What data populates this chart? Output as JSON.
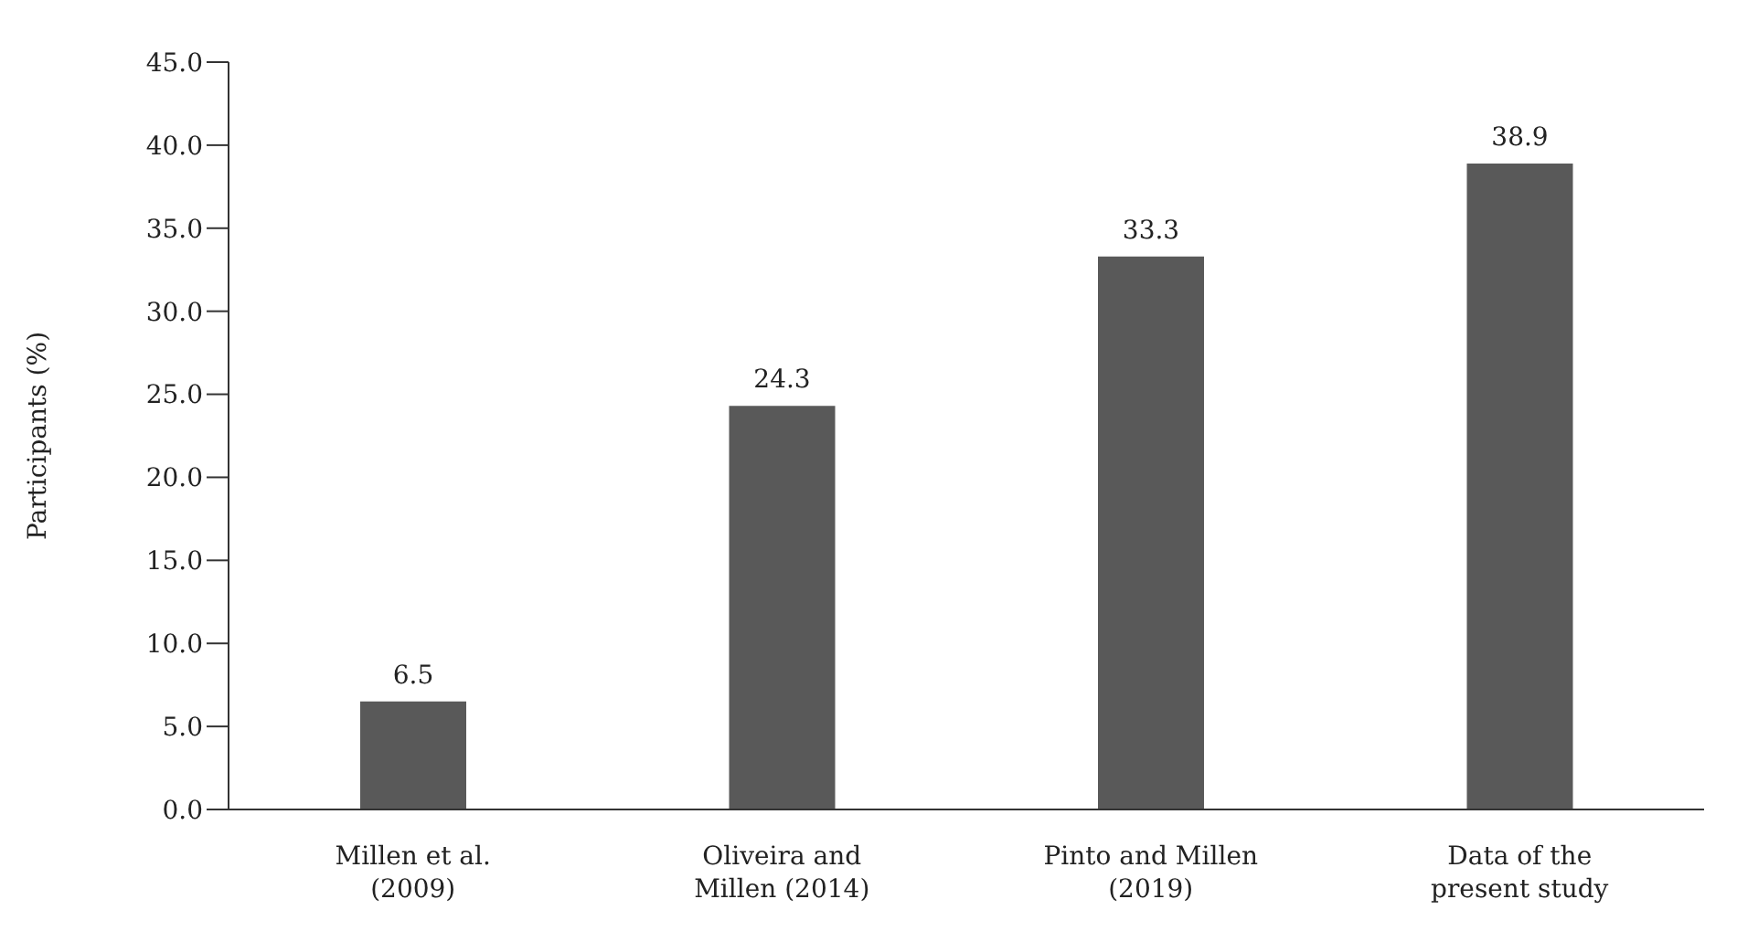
{
  "chart_data": {
    "type": "bar",
    "ylabel": "Participants (%)",
    "categories": [
      "Millen et al. (2009)",
      "Oliveira and Millen (2014)",
      "Pinto and Millen (2019)",
      "Data of the present study"
    ],
    "values": [
      6.5,
      24.3,
      33.3,
      38.9
    ],
    "color": "#595959",
    "ylim": [
      0,
      45
    ],
    "yticks": [
      {
        "value": 0,
        "label": "0.0"
      },
      {
        "value": 5,
        "label": "5.0"
      },
      {
        "value": 10,
        "label": "10.0"
      },
      {
        "value": 15,
        "label": "15.0"
      },
      {
        "value": 20,
        "label": "20.0"
      },
      {
        "value": 25,
        "label": "25.0"
      },
      {
        "value": 30,
        "label": "30.0"
      },
      {
        "value": 35,
        "label": "35.0"
      },
      {
        "value": 40,
        "label": "40.0"
      },
      {
        "value": 45,
        "label": "45.0"
      }
    ],
    "data_labels": true,
    "grid": false,
    "legend": false
  }
}
